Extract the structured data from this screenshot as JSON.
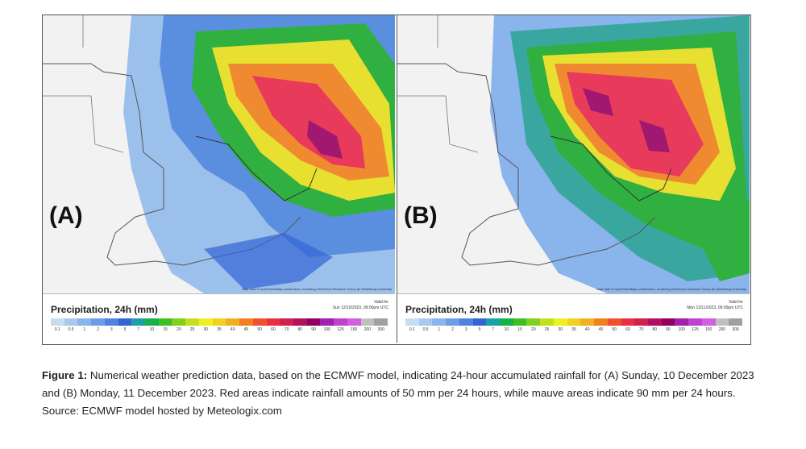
{
  "panels": [
    {
      "label": "(A)",
      "legend_title": "Precipitation, 24h (mm)",
      "valid_line1": "Valid for",
      "valid_line2": "Sun 12/10/2023, 09:00pm UTC"
    },
    {
      "label": "(B)",
      "legend_title": "Precipitation, 24h (mm)",
      "valid_line1": "Valid for",
      "valid_line2": "Mon 12/11/2023, 09:00pm UTC"
    }
  ],
  "attribution": "Map data © OpenStreetMap contributors, rendering GIScience Research Group @ Heidelberg University",
  "legend_ticks": [
    "0.1",
    "0.5",
    "1",
    "2",
    "3",
    "5",
    "7",
    "10",
    "15",
    "20",
    "25",
    "30",
    "35",
    "40",
    "45",
    "50",
    "60",
    "70",
    "80",
    "90",
    "100",
    "125",
    "150",
    "200",
    "300"
  ],
  "legend_colors": [
    "#c6dcf0",
    "#a9c8ee",
    "#8ab4ec",
    "#6d9ce8",
    "#4e84e0",
    "#3464d6",
    "#1ea0a8",
    "#18b048",
    "#40c020",
    "#80d020",
    "#c0e020",
    "#f0f020",
    "#f0d020",
    "#f0b020",
    "#f08020",
    "#f05030",
    "#e83040",
    "#d02050",
    "#b01060",
    "#900060",
    "#a020b0",
    "#c040d0",
    "#d060e0",
    "#c0c0c0",
    "#a0a0a0"
  ],
  "caption": {
    "label": "Figure 1:",
    "text": " Numerical weather prediction data, based on the ECMWF model, indicating 24-hour accumulated rainfall for (A) Sunday, 10 December 2023 and (B) Monday, 11 December 2023. Red areas indicate rainfall amounts of 50 mm per 24 hours, while mauve areas indicate 90 mm per 24 hours. Source: ECMWF model hosted by Meteologix.com"
  }
}
